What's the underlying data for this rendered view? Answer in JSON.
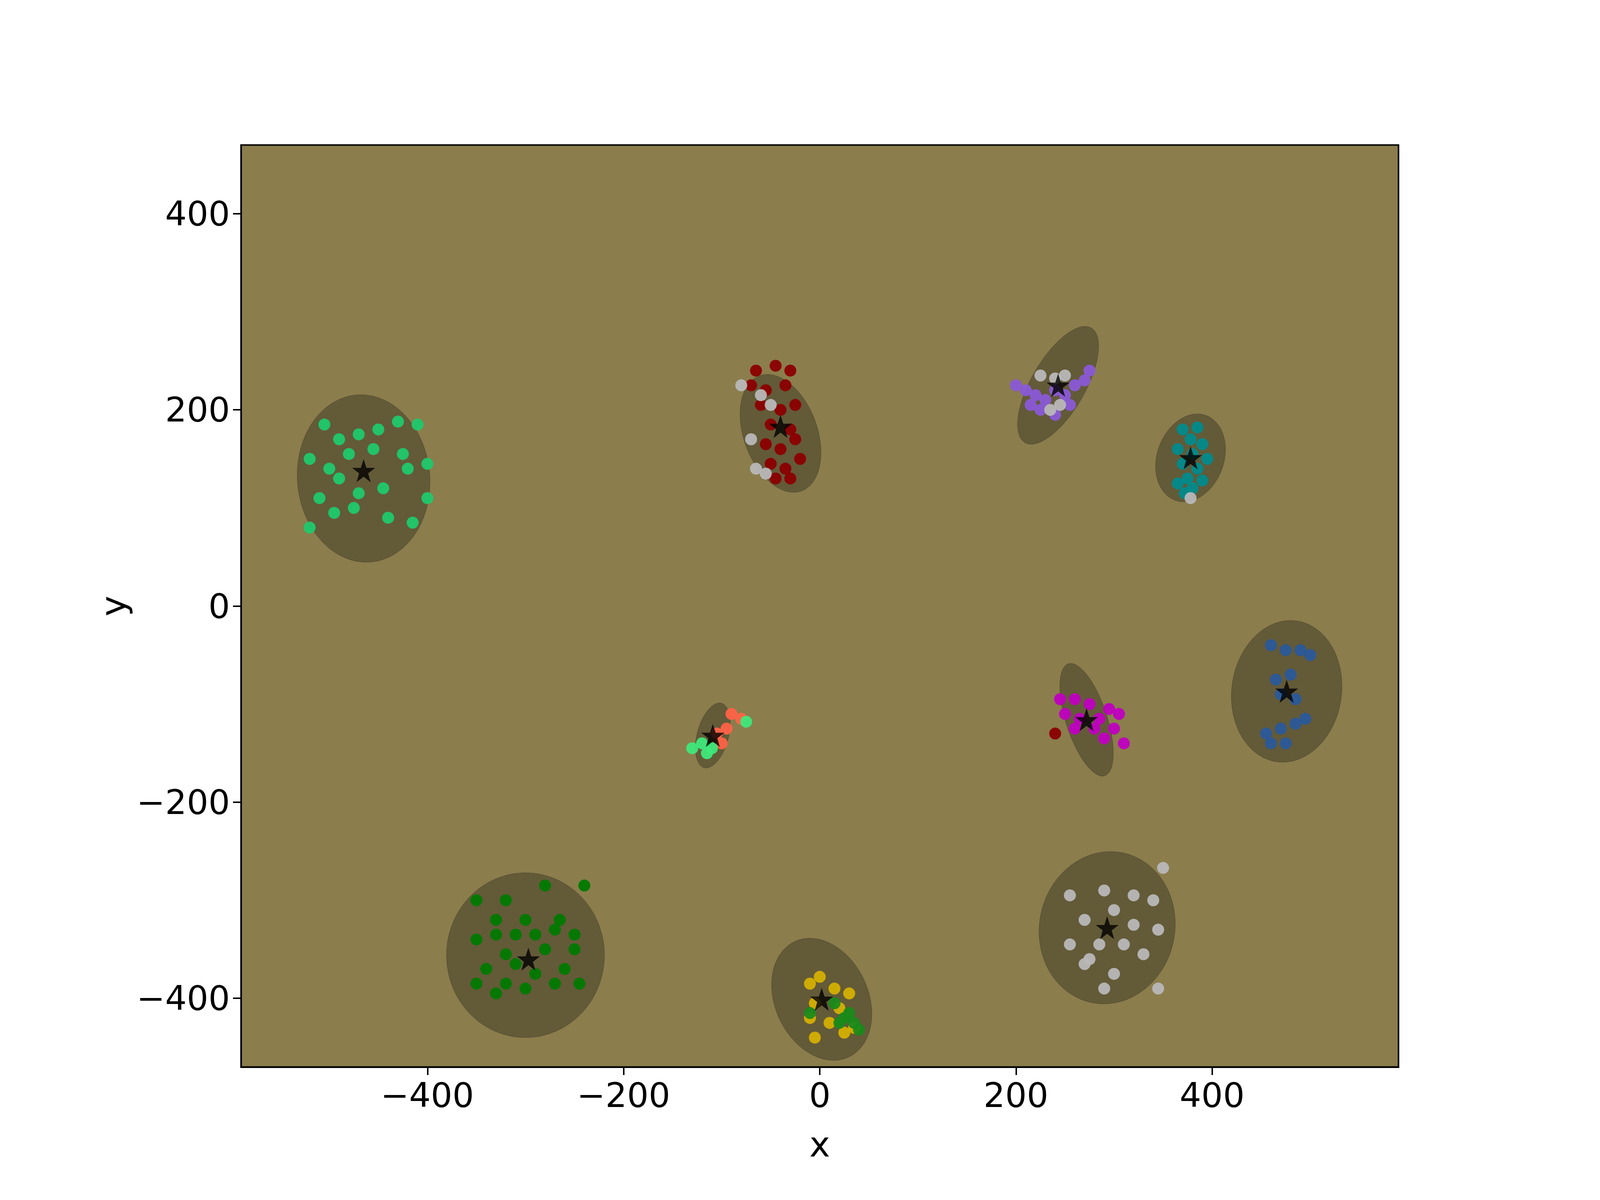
{
  "chart_data": {
    "type": "scatter",
    "x_label": "x",
    "y_label": "y",
    "xlim": [
      -590,
      590
    ],
    "ylim": [
      -470,
      470
    ],
    "xticks": [
      {
        "value": -400,
        "label": "−400"
      },
      {
        "value": -200,
        "label": "−200"
      },
      0,
      200,
      400
    ],
    "yticks": [
      {
        "value": -400,
        "label": "−400"
      },
      {
        "value": -200,
        "label": "−200"
      },
      0,
      200,
      400
    ],
    "grid": false,
    "series": [
      {
        "color": "#1fc96b",
        "marker": "circle",
        "points": [
          [
            -505,
            185
          ],
          [
            -490,
            170
          ],
          [
            -470,
            175
          ],
          [
            -450,
            180
          ],
          [
            -430,
            188
          ],
          [
            -410,
            185
          ],
          [
            -520,
            150
          ],
          [
            -500,
            140
          ],
          [
            -480,
            155
          ],
          [
            -455,
            160
          ],
          [
            -425,
            155
          ],
          [
            -510,
            110
          ],
          [
            -490,
            130
          ],
          [
            -470,
            115
          ],
          [
            -445,
            120
          ],
          [
            -420,
            140
          ],
          [
            -400,
            110
          ],
          [
            -495,
            95
          ],
          [
            -475,
            100
          ],
          [
            -440,
            90
          ],
          [
            -415,
            85
          ],
          [
            -520,
            80
          ],
          [
            -400,
            145
          ]
        ]
      },
      {
        "color": "#8b0000",
        "marker": "circle",
        "points": [
          [
            -65,
            240
          ],
          [
            -45,
            245
          ],
          [
            -30,
            240
          ],
          [
            -70,
            225
          ],
          [
            -55,
            220
          ],
          [
            -35,
            225
          ],
          [
            -60,
            205
          ],
          [
            -40,
            200
          ],
          [
            -25,
            205
          ],
          [
            -50,
            185
          ],
          [
            -30,
            180
          ],
          [
            -55,
            165
          ],
          [
            -40,
            160
          ],
          [
            -25,
            170
          ],
          [
            -50,
            145
          ],
          [
            -35,
            140
          ],
          [
            -20,
            150
          ],
          [
            -45,
            130
          ],
          [
            -30,
            130
          ]
        ]
      },
      {
        "color": "#8a5ad6",
        "marker": "circle",
        "points": [
          [
            200,
            225
          ],
          [
            210,
            220
          ],
          [
            220,
            215
          ],
          [
            230,
            210
          ],
          [
            240,
            220
          ],
          [
            250,
            215
          ],
          [
            260,
            225
          ],
          [
            270,
            230
          ],
          [
            275,
            240
          ],
          [
            225,
            200
          ],
          [
            240,
            195
          ],
          [
            255,
            205
          ],
          [
            215,
            205
          ]
        ]
      },
      {
        "color": "#008b8b",
        "marker": "circle",
        "points": [
          [
            370,
            180
          ],
          [
            385,
            182
          ],
          [
            378,
            170
          ],
          [
            390,
            165
          ],
          [
            365,
            160
          ],
          [
            380,
            155
          ],
          [
            395,
            150
          ],
          [
            370,
            145
          ],
          [
            385,
            140
          ],
          [
            375,
            130
          ],
          [
            390,
            128
          ],
          [
            365,
            125
          ],
          [
            380,
            120
          ],
          [
            372,
            115
          ]
        ]
      },
      {
        "color": "#ff6347",
        "marker": "circle",
        "points": [
          [
            -90,
            -110
          ],
          [
            -80,
            -115
          ],
          [
            -95,
            -125
          ],
          [
            -105,
            -130
          ],
          [
            -100,
            -140
          ]
        ]
      },
      {
        "color": "#3ee87a",
        "marker": "circle",
        "points": [
          [
            -120,
            -140
          ],
          [
            -130,
            -145
          ],
          [
            -115,
            -150
          ],
          [
            -75,
            -118
          ],
          [
            -110,
            -145
          ]
        ]
      },
      {
        "color": "#c000c0",
        "marker": "circle",
        "points": [
          [
            245,
            -95
          ],
          [
            260,
            -95
          ],
          [
            275,
            -100
          ],
          [
            295,
            -105
          ],
          [
            250,
            -110
          ],
          [
            265,
            -115
          ],
          [
            285,
            -115
          ],
          [
            305,
            -110
          ],
          [
            260,
            -125
          ],
          [
            280,
            -125
          ],
          [
            300,
            -125
          ],
          [
            310,
            -140
          ],
          [
            290,
            -135
          ]
        ]
      },
      {
        "color": "#8b0000",
        "marker": "circle",
        "points": [
          [
            240,
            -130
          ]
        ]
      },
      {
        "color": "#2a5a9a",
        "marker": "circle",
        "points": [
          [
            460,
            -40
          ],
          [
            475,
            -45
          ],
          [
            490,
            -45
          ],
          [
            500,
            -50
          ],
          [
            465,
            -75
          ],
          [
            480,
            -70
          ],
          [
            470,
            -90
          ],
          [
            485,
            -95
          ],
          [
            455,
            -130
          ],
          [
            470,
            -125
          ],
          [
            485,
            -120
          ],
          [
            495,
            -115
          ],
          [
            460,
            -140
          ],
          [
            475,
            -140
          ]
        ]
      },
      {
        "color": "#007a00",
        "marker": "circle",
        "points": [
          [
            -350,
            -300
          ],
          [
            -320,
            -300
          ],
          [
            -280,
            -285
          ],
          [
            -240,
            -285
          ],
          [
            -330,
            -320
          ],
          [
            -300,
            -320
          ],
          [
            -265,
            -320
          ],
          [
            -350,
            -340
          ],
          [
            -330,
            -335
          ],
          [
            -310,
            -335
          ],
          [
            -290,
            -335
          ],
          [
            -270,
            -330
          ],
          [
            -250,
            -335
          ],
          [
            -320,
            -355
          ],
          [
            -280,
            -350
          ],
          [
            -250,
            -350
          ],
          [
            -340,
            -370
          ],
          [
            -310,
            -365
          ],
          [
            -290,
            -375
          ],
          [
            -260,
            -370
          ],
          [
            -350,
            -385
          ],
          [
            -320,
            -385
          ],
          [
            -300,
            -390
          ],
          [
            -270,
            -385
          ],
          [
            -245,
            -385
          ],
          [
            -330,
            -395
          ]
        ]
      },
      {
        "color": "#d4b000",
        "marker": "circle",
        "points": [
          [
            0,
            -378
          ],
          [
            -10,
            -385
          ],
          [
            15,
            -390
          ],
          [
            30,
            -395
          ],
          [
            -5,
            -405
          ],
          [
            20,
            -410
          ],
          [
            -10,
            -420
          ],
          [
            10,
            -425
          ],
          [
            35,
            -430
          ],
          [
            -5,
            -440
          ],
          [
            25,
            -435
          ]
        ]
      },
      {
        "color": "#1a8a1a",
        "marker": "circle",
        "points": [
          [
            -10,
            -415
          ],
          [
            15,
            -405
          ],
          [
            25,
            -420
          ],
          [
            35,
            -425
          ],
          [
            40,
            -432
          ],
          [
            20,
            -425
          ],
          [
            30,
            -415
          ]
        ]
      },
      {
        "color": "#b8b8b8",
        "marker": "circle",
        "points": [
          [
            350,
            -267
          ],
          [
            320,
            -295
          ],
          [
            290,
            -290
          ],
          [
            255,
            -295
          ],
          [
            340,
            -300
          ],
          [
            300,
            -310
          ],
          [
            270,
            -320
          ],
          [
            320,
            -325
          ],
          [
            345,
            -330
          ],
          [
            255,
            -345
          ],
          [
            285,
            -345
          ],
          [
            310,
            -345
          ],
          [
            275,
            -360
          ],
          [
            330,
            -355
          ],
          [
            300,
            -375
          ],
          [
            345,
            -390
          ],
          [
            290,
            -390
          ],
          [
            270,
            -365
          ],
          [
            -80,
            225
          ],
          [
            -60,
            215
          ],
          [
            -50,
            205
          ],
          [
            -70,
            170
          ],
          [
            -65,
            140
          ],
          [
            -55,
            135
          ],
          [
            225,
            235
          ],
          [
            240,
            232
          ],
          [
            250,
            235
          ],
          [
            235,
            200
          ],
          [
            245,
            205
          ],
          [
            378,
            110
          ]
        ]
      }
    ],
    "ellipses": [
      {
        "center": [
          -465,
          130
        ],
        "width": 135,
        "height": 171,
        "angle": 5
      },
      {
        "center": [
          -40,
          176
        ],
        "width": 75,
        "height": 125,
        "angle": 20
      },
      {
        "center": [
          243,
          225
        ],
        "width": 55,
        "height": 135,
        "angle": -30
      },
      {
        "center": [
          378,
          151
        ],
        "width": 68,
        "height": 92,
        "angle": -20
      },
      {
        "center": [
          -109,
          -132
        ],
        "width": 32,
        "height": 68,
        "angle": -15
      },
      {
        "center": [
          272,
          -116
        ],
        "width": 42,
        "height": 120,
        "angle": 18
      },
      {
        "center": [
          476,
          -87
        ],
        "width": 112,
        "height": 145,
        "angle": -8
      },
      {
        "center": [
          -300,
          -356
        ],
        "width": 161,
        "height": 168,
        "angle": 0
      },
      {
        "center": [
          2,
          -401
        ],
        "width": 95,
        "height": 130,
        "angle": 25
      },
      {
        "center": [
          293,
          -328
        ],
        "width": 138,
        "height": 156,
        "angle": -12
      }
    ],
    "centers": {
      "color": "#000000",
      "marker": "star",
      "points": [
        [
          -465,
          138
        ],
        [
          -40,
          183
        ],
        [
          243,
          225
        ],
        [
          378,
          151
        ],
        [
          -109,
          -132
        ],
        [
          272,
          -116
        ],
        [
          476,
          -87
        ],
        [
          -297,
          -360
        ],
        [
          2,
          -401
        ],
        [
          293,
          -328
        ]
      ]
    }
  }
}
